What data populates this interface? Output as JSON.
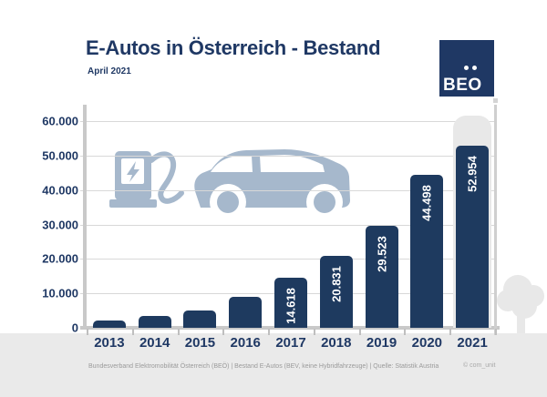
{
  "header": {
    "title": "E-Autos in Österreich - Bestand",
    "subtitle": "April 2021"
  },
  "logo": {
    "name": "BEÖ",
    "text": "BEO"
  },
  "chart_data": {
    "type": "bar",
    "title": "E-Autos in Österreich - Bestand",
    "subtitle": "April 2021",
    "categories": [
      "2013",
      "2014",
      "2015",
      "2016",
      "2017",
      "2018",
      "2019",
      "2020",
      "2021"
    ],
    "values": [
      2000,
      3400,
      5000,
      9100,
      14618,
      20831,
      29523,
      44498,
      52954
    ],
    "bar_labels": [
      "",
      "",
      "",
      "",
      "14.618",
      "20.831",
      "29.523",
      "44.498",
      "52.954"
    ],
    "xlabel": "",
    "ylabel": "",
    "ylim": [
      0,
      60000
    ],
    "ytick_values": [
      60000,
      50000,
      40000,
      30000,
      20000,
      10000,
      0
    ],
    "ytick_labels": [
      "60.000",
      "50.000",
      "40.000",
      "30.000",
      "20.000",
      "10.000",
      "0"
    ],
    "grid": true,
    "legend": false,
    "ghost_highlight_category": "2021",
    "ghost_value_estimate": 61500
  },
  "colors": {
    "navy": "#1f3864",
    "bar": "#1e3a5f",
    "car": "#a6b8cc",
    "grid": "#d8d8d8",
    "axis": "#c9c9c9",
    "strip": "#eaeaea",
    "ghost": "#e8e8e8",
    "footer_text": "#9a9a9a"
  },
  "footer": {
    "source_line": "Bundesverband Elektromobilität Österreich (BEÖ) | Bestand E-Autos (BEV, keine Hybridfahrzeuge) | Quelle: Statistik Austria",
    "credit": "© com_unit"
  }
}
